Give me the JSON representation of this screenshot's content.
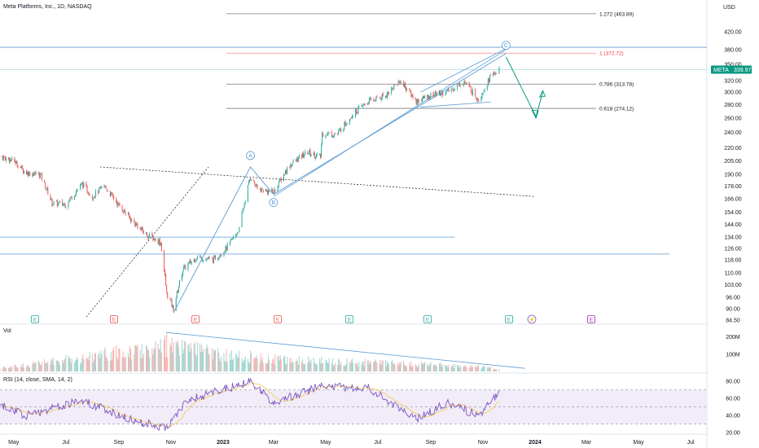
{
  "symbol_title": "Meta Platforms, Inc., 1D, NASDAQ",
  "currency": "USD",
  "price_tag": {
    "symbol": "META",
    "value": "339.97",
    "color": "#089981"
  },
  "colors": {
    "up": "#26a69a",
    "down": "#ef5350",
    "wave": "#5b9bd5",
    "fib": "#131722",
    "fib_top": "#f23645",
    "projection": "#089981",
    "rsi_line": "#7e57c2",
    "rsi_ma": "#f7c948"
  },
  "volume_panel": {
    "label": "Vol",
    "ticks": [
      "200M",
      "100M"
    ]
  },
  "rsi_panel": {
    "label": "RSI (14, close, SMA, 14, 2)",
    "ticks": [
      "80.00",
      "60.00",
      "40.00",
      "20.00"
    ]
  },
  "price_axis_ticks": [
    "420.00",
    "380.00",
    "350.00",
    "320.00",
    "300.00",
    "280.00",
    "260.00",
    "240.00",
    "220.00",
    "205.00",
    "190.00",
    "178.00",
    "166.00",
    "154.00",
    "144.00",
    "134.00",
    "126.00",
    "118.00",
    "110.00",
    "103.00",
    "96.00",
    "90.00",
    "84.50"
  ],
  "time_axis_ticks": [
    "May",
    "Jul",
    "Sep",
    "Nov",
    "2023",
    "Mar",
    "May",
    "Jul",
    "Sep",
    "Nov",
    "2024",
    "Mar",
    "May",
    "Jul"
  ],
  "fib_levels": [
    {
      "label": "1.272 (463.89)",
      "value": 463.89
    },
    {
      "label": "1 (372.72)",
      "value": 372.72
    },
    {
      "label": "0.786 (313.78)",
      "value": 313.78
    },
    {
      "label": "0.618 (274.12)",
      "value": 274.12
    }
  ],
  "wave_labels": [
    "A",
    "B",
    "C"
  ],
  "event_markers": [
    {
      "text": "E",
      "type": "earnings-up"
    },
    {
      "text": "E",
      "type": "earnings-down"
    },
    {
      "text": "E",
      "type": "earnings-down"
    },
    {
      "text": "E",
      "type": "earnings-down"
    },
    {
      "text": "E",
      "type": "earnings-up"
    },
    {
      "text": "E",
      "type": "earnings-up"
    },
    {
      "text": "E",
      "type": "earnings-up"
    },
    {
      "text": "⚡",
      "type": "dividend"
    },
    {
      "text": "E",
      "type": "earnings-future"
    }
  ],
  "chart_data": {
    "type": "candlestick",
    "title": "Meta Platforms, Inc., 1D, NASDAQ",
    "y_scale": "log",
    "ylim": [
      84.5,
      470
    ],
    "x_range": [
      "2022-04-15",
      "2024-07-20"
    ],
    "close_path": [
      {
        "date": "2022-04-15",
        "close": 210
      },
      {
        "date": "2022-05-01",
        "close": 205
      },
      {
        "date": "2022-05-15",
        "close": 192
      },
      {
        "date": "2022-06-01",
        "close": 190
      },
      {
        "date": "2022-06-15",
        "close": 162
      },
      {
        "date": "2022-07-01",
        "close": 161
      },
      {
        "date": "2022-07-20",
        "close": 180
      },
      {
        "date": "2022-08-01",
        "close": 168
      },
      {
        "date": "2022-08-15",
        "close": 178
      },
      {
        "date": "2022-09-01",
        "close": 160
      },
      {
        "date": "2022-09-15",
        "close": 148
      },
      {
        "date": "2022-10-01",
        "close": 137
      },
      {
        "date": "2022-10-20",
        "close": 130
      },
      {
        "date": "2022-10-27",
        "close": 98
      },
      {
        "date": "2022-11-04",
        "close": 90
      },
      {
        "date": "2022-11-15",
        "close": 112
      },
      {
        "date": "2022-12-01",
        "close": 120
      },
      {
        "date": "2022-12-20",
        "close": 118
      },
      {
        "date": "2023-01-05",
        "close": 126
      },
      {
        "date": "2023-01-20",
        "close": 140
      },
      {
        "date": "2023-02-02",
        "close": 188
      },
      {
        "date": "2023-02-10",
        "close": 175
      },
      {
        "date": "2023-03-01",
        "close": 172
      },
      {
        "date": "2023-03-20",
        "close": 200
      },
      {
        "date": "2023-04-10",
        "close": 215
      },
      {
        "date": "2023-04-25",
        "close": 209
      },
      {
        "date": "2023-04-27",
        "close": 238
      },
      {
        "date": "2023-05-15",
        "close": 238
      },
      {
        "date": "2023-06-01",
        "close": 265
      },
      {
        "date": "2023-06-20",
        "close": 285
      },
      {
        "date": "2023-07-10",
        "close": 295
      },
      {
        "date": "2023-07-27",
        "close": 320
      },
      {
        "date": "2023-08-15",
        "close": 285
      },
      {
        "date": "2023-09-01",
        "close": 295
      },
      {
        "date": "2023-09-20",
        "close": 300
      },
      {
        "date": "2023-10-10",
        "close": 318
      },
      {
        "date": "2023-10-27",
        "close": 288
      },
      {
        "date": "2023-11-10",
        "close": 328
      },
      {
        "date": "2023-11-20",
        "close": 339.97
      }
    ],
    "volume_path": [
      {
        "date": "2022-04-15",
        "volume": 30
      },
      {
        "date": "2022-10-27",
        "volume": 230
      },
      {
        "date": "2023-02-02",
        "volume": 120
      },
      {
        "date": "2023-10-27",
        "volume": 45
      },
      {
        "date": "2023-11-20",
        "volume": 20
      }
    ],
    "rsi_path": [
      {
        "date": "2022-04-15",
        "rsi": 52
      },
      {
        "date": "2022-05-15",
        "rsi": 40
      },
      {
        "date": "2022-07-20",
        "rsi": 58
      },
      {
        "date": "2022-09-15",
        "rsi": 35
      },
      {
        "date": "2022-10-27",
        "rsi": 25
      },
      {
        "date": "2022-11-20",
        "rsi": 58
      },
      {
        "date": "2023-02-02",
        "rsi": 80
      },
      {
        "date": "2023-03-01",
        "rsi": 55
      },
      {
        "date": "2023-04-27",
        "rsi": 75
      },
      {
        "date": "2023-06-20",
        "rsi": 72
      },
      {
        "date": "2023-08-15",
        "rsi": 35
      },
      {
        "date": "2023-09-20",
        "rsi": 55
      },
      {
        "date": "2023-10-27",
        "rsi": 40
      },
      {
        "date": "2023-11-20",
        "rsi": 68
      }
    ],
    "volume_ylim": [
      0,
      240
    ],
    "rsi_ylim": [
      20,
      85
    ],
    "rsi_band": [
      30,
      70
    ],
    "horizontal_lines": [
      385,
      134,
      122
    ],
    "trend_lines": [
      {
        "from": {
          "date": "2022-08-10",
          "price": 198
        },
        "to": {
          "date": "2023-12-31",
          "price": 168
        },
        "style": "dashed"
      },
      {
        "from": {
          "date": "2022-07-25",
          "price": 86
        },
        "to": {
          "date": "2022-12-15",
          "price": 198
        },
        "style": "dashed"
      }
    ],
    "wave_points": [
      {
        "label": "",
        "date": "2022-11-04",
        "price": 88
      },
      {
        "label": "A",
        "date": "2023-02-02",
        "price": 198
      },
      {
        "label": "B",
        "date": "2023-03-01",
        "price": 170
      },
      {
        "label": "C",
        "date": "2023-11-28",
        "price": 372
      }
    ],
    "projection": [
      {
        "date": "2023-11-28",
        "price": 365
      },
      {
        "date": "2024-01-02",
        "price": 262
      },
      {
        "date": "2024-01-10",
        "price": 300
      }
    ]
  }
}
